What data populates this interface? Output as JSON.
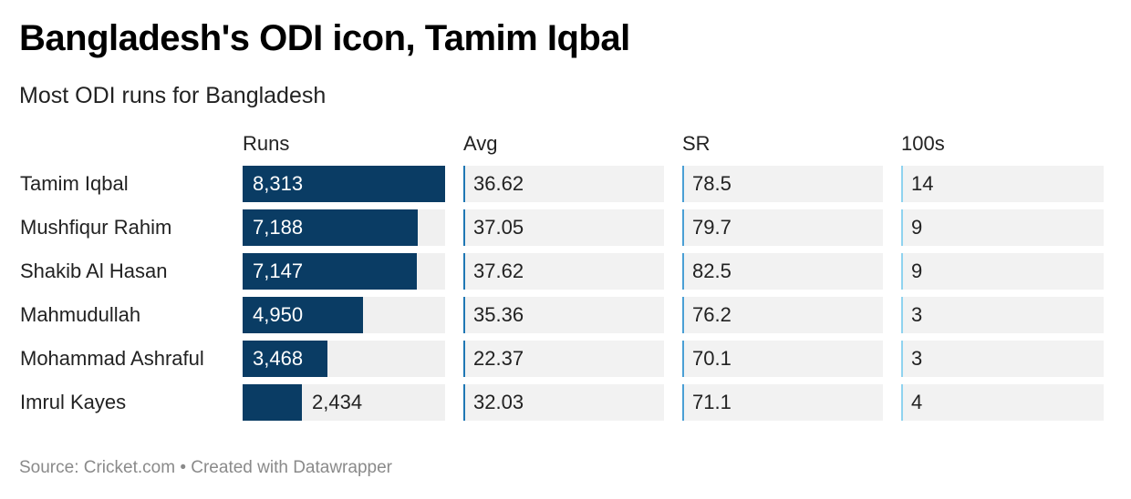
{
  "title": "Bangladesh's ODI icon, Tamim Iqbal",
  "subtitle": "Most ODI runs for Bangladesh",
  "footer": "Source: Cricket.com • Created with Datawrapper",
  "colors": {
    "bar": "#0a3c64",
    "avg_rule": "#1f77b4",
    "sr_rule": "#4a9fd5",
    "hundreds_rule": "#8fd3ef",
    "cell_bg": "#f2f2f2"
  },
  "chart_data": {
    "type": "table",
    "columns": [
      "Runs",
      "Avg",
      "SR",
      "100s"
    ],
    "runs_max": 8313,
    "rows": [
      {
        "name": "Tamim Iqbal",
        "runs": 8313,
        "runs_label": "8,313",
        "avg": "36.62",
        "sr": "78.5",
        "hundreds": "14"
      },
      {
        "name": "Mushfiqur Rahim",
        "runs": 7188,
        "runs_label": "7,188",
        "avg": "37.05",
        "sr": "79.7",
        "hundreds": "9"
      },
      {
        "name": "Shakib Al Hasan",
        "runs": 7147,
        "runs_label": "7,147",
        "avg": "37.62",
        "sr": "82.5",
        "hundreds": "9"
      },
      {
        "name": "Mahmudullah",
        "runs": 4950,
        "runs_label": "4,950",
        "avg": "35.36",
        "sr": "76.2",
        "hundreds": "3"
      },
      {
        "name": "Mohammad Ashraful",
        "runs": 3468,
        "runs_label": "3,468",
        "avg": "22.37",
        "sr": "70.1",
        "hundreds": "3"
      },
      {
        "name": "Imrul Kayes",
        "runs": 2434,
        "runs_label": "2,434",
        "avg": "32.03",
        "sr": "71.1",
        "hundreds": "4"
      }
    ]
  }
}
